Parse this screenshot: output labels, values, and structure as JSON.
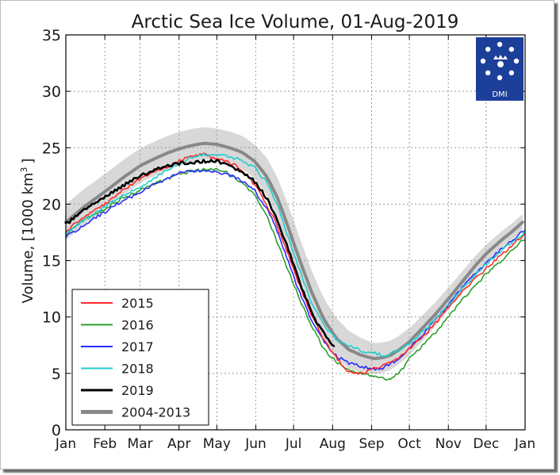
{
  "chart_data": {
    "type": "line",
    "title": "Arctic Sea Ice Volume, 01-Aug-2019",
    "ylabel": "Volume, [1000 km",
    "ylabel_sup": "3",
    "ylabel_end": "]",
    "xlabel": "",
    "ylim": [
      0,
      35
    ],
    "yticks": [
      0,
      5,
      10,
      15,
      20,
      25,
      30,
      35
    ],
    "xlim": [
      0,
      365
    ],
    "xtick_days": [
      0,
      31,
      59,
      90,
      120,
      151,
      181,
      212,
      243,
      273,
      304,
      334,
      365
    ],
    "xtick_labels": [
      "Jan",
      "Feb",
      "Mar",
      "Apr",
      "May",
      "Jun",
      "Jul",
      "Aug",
      "Sep",
      "Oct",
      "Nov",
      "Dec",
      "Jan"
    ],
    "grid": true,
    "legend_position": "bottom-left",
    "logo_text": "DMI",
    "series": [
      {
        "name": "2015",
        "color": "#ff2a2a",
        "points": [
          [
            0,
            17.6
          ],
          [
            15,
            18.9
          ],
          [
            31,
            20.0
          ],
          [
            45,
            21.2
          ],
          [
            59,
            22.3
          ],
          [
            70,
            22.9
          ],
          [
            80,
            23.3
          ],
          [
            90,
            23.8
          ],
          [
            100,
            24.3
          ],
          [
            110,
            24.4
          ],
          [
            115,
            24.2
          ],
          [
            125,
            23.9
          ],
          [
            135,
            23.4
          ],
          [
            145,
            22.5
          ],
          [
            155,
            20.9
          ],
          [
            165,
            18.8
          ],
          [
            175,
            16.0
          ],
          [
            185,
            13.0
          ],
          [
            195,
            10.2
          ],
          [
            205,
            8.0
          ],
          [
            215,
            6.4
          ],
          [
            222,
            5.4
          ],
          [
            228,
            5.0
          ],
          [
            235,
            5.0
          ],
          [
            242,
            5.3
          ],
          [
            250,
            5.6
          ],
          [
            258,
            5.9
          ],
          [
            265,
            6.4
          ],
          [
            273,
            7.2
          ],
          [
            285,
            8.4
          ],
          [
            295,
            9.6
          ],
          [
            304,
            10.8
          ],
          [
            315,
            12.2
          ],
          [
            325,
            13.3
          ],
          [
            334,
            14.3
          ],
          [
            345,
            15.4
          ],
          [
            355,
            16.4
          ],
          [
            365,
            17.4
          ]
        ]
      },
      {
        "name": "2016",
        "color": "#2ca02c",
        "points": [
          [
            0,
            17.4
          ],
          [
            15,
            18.6
          ],
          [
            31,
            19.6
          ],
          [
            45,
            20.5
          ],
          [
            59,
            21.2
          ],
          [
            70,
            21.8
          ],
          [
            80,
            22.2
          ],
          [
            90,
            22.7
          ],
          [
            100,
            22.9
          ],
          [
            110,
            23.1
          ],
          [
            120,
            23.1
          ],
          [
            130,
            22.7
          ],
          [
            140,
            21.9
          ],
          [
            150,
            20.8
          ],
          [
            160,
            18.9
          ],
          [
            168,
            16.6
          ],
          [
            175,
            14.6
          ],
          [
            185,
            11.8
          ],
          [
            195,
            9.3
          ],
          [
            205,
            7.2
          ],
          [
            215,
            6.0
          ],
          [
            225,
            5.3
          ],
          [
            235,
            5.0
          ],
          [
            243,
            4.8
          ],
          [
            250,
            4.6
          ],
          [
            255,
            4.5
          ],
          [
            260,
            4.7
          ],
          [
            267,
            5.3
          ],
          [
            273,
            6.3
          ],
          [
            285,
            7.6
          ],
          [
            295,
            8.8
          ],
          [
            304,
            10.0
          ],
          [
            315,
            11.5
          ],
          [
            325,
            12.7
          ],
          [
            334,
            13.8
          ],
          [
            345,
            14.9
          ],
          [
            355,
            15.9
          ],
          [
            365,
            17.0
          ]
        ]
      },
      {
        "name": "2017",
        "color": "#2a2aff",
        "points": [
          [
            0,
            17.1
          ],
          [
            15,
            18.2
          ],
          [
            31,
            19.3
          ],
          [
            45,
            20.3
          ],
          [
            59,
            21.0
          ],
          [
            70,
            21.7
          ],
          [
            80,
            22.3
          ],
          [
            90,
            22.7
          ],
          [
            100,
            22.9
          ],
          [
            110,
            23.0
          ],
          [
            120,
            22.9
          ],
          [
            130,
            22.6
          ],
          [
            140,
            22.0
          ],
          [
            150,
            21.2
          ],
          [
            160,
            19.6
          ],
          [
            168,
            17.6
          ],
          [
            175,
            15.4
          ],
          [
            185,
            12.4
          ],
          [
            195,
            9.8
          ],
          [
            205,
            7.8
          ],
          [
            215,
            6.5
          ],
          [
            225,
            5.9
          ],
          [
            235,
            5.6
          ],
          [
            245,
            5.4
          ],
          [
            252,
            5.5
          ],
          [
            258,
            5.8
          ],
          [
            265,
            6.4
          ],
          [
            273,
            7.2
          ],
          [
            285,
            8.6
          ],
          [
            295,
            9.9
          ],
          [
            304,
            11.0
          ],
          [
            315,
            12.6
          ],
          [
            325,
            13.8
          ],
          [
            334,
            14.8
          ],
          [
            345,
            15.9
          ],
          [
            355,
            16.8
          ],
          [
            365,
            17.8
          ]
        ]
      },
      {
        "name": "2018",
        "color": "#22cccc",
        "points": [
          [
            0,
            17.4
          ],
          [
            15,
            18.6
          ],
          [
            31,
            19.8
          ],
          [
            45,
            20.7
          ],
          [
            59,
            21.5
          ],
          [
            70,
            22.3
          ],
          [
            80,
            23.0
          ],
          [
            90,
            23.6
          ],
          [
            100,
            24.1
          ],
          [
            110,
            24.4
          ],
          [
            120,
            24.4
          ],
          [
            130,
            24.2
          ],
          [
            140,
            23.9
          ],
          [
            150,
            23.2
          ],
          [
            160,
            21.9
          ],
          [
            168,
            20.0
          ],
          [
            175,
            17.6
          ],
          [
            185,
            14.4
          ],
          [
            195,
            11.4
          ],
          [
            205,
            9.2
          ],
          [
            215,
            8.0
          ],
          [
            225,
            7.4
          ],
          [
            235,
            7.0
          ],
          [
            245,
            6.8
          ],
          [
            252,
            6.6
          ],
          [
            258,
            6.7
          ],
          [
            265,
            7.1
          ],
          [
            273,
            7.7
          ],
          [
            285,
            8.8
          ],
          [
            295,
            9.9
          ],
          [
            304,
            11.0
          ],
          [
            315,
            12.5
          ],
          [
            325,
            13.7
          ],
          [
            334,
            14.7
          ],
          [
            345,
            15.8
          ],
          [
            355,
            16.7
          ],
          [
            365,
            17.5
          ]
        ]
      },
      {
        "name": "2019",
        "color": "#000000",
        "points": [
          [
            0,
            18.2
          ],
          [
            15,
            19.5
          ],
          [
            31,
            20.6
          ],
          [
            45,
            21.6
          ],
          [
            59,
            22.5
          ],
          [
            70,
            23.0
          ],
          [
            80,
            23.4
          ],
          [
            90,
            23.6
          ],
          [
            100,
            23.7
          ],
          [
            110,
            23.8
          ],
          [
            120,
            23.8
          ],
          [
            130,
            23.4
          ],
          [
            140,
            22.9
          ],
          [
            150,
            22.0
          ],
          [
            160,
            20.5
          ],
          [
            170,
            18.0
          ],
          [
            180,
            15.0
          ],
          [
            190,
            11.8
          ],
          [
            200,
            9.4
          ],
          [
            210,
            7.7
          ],
          [
            213,
            7.4
          ]
        ]
      },
      {
        "name": "2004-2013",
        "color": "#888888",
        "band_color": "#d8d8d8",
        "points": [
          [
            0,
            18.4
          ],
          [
            15,
            19.8
          ],
          [
            31,
            21.1
          ],
          [
            45,
            22.3
          ],
          [
            59,
            23.4
          ],
          [
            70,
            24.0
          ],
          [
            80,
            24.5
          ],
          [
            90,
            24.9
          ],
          [
            100,
            25.2
          ],
          [
            110,
            25.4
          ],
          [
            120,
            25.3
          ],
          [
            130,
            25.0
          ],
          [
            140,
            24.6
          ],
          [
            150,
            23.8
          ],
          [
            160,
            22.4
          ],
          [
            168,
            20.6
          ],
          [
            175,
            18.5
          ],
          [
            185,
            15.3
          ],
          [
            195,
            12.3
          ],
          [
            205,
            9.8
          ],
          [
            215,
            8.1
          ],
          [
            225,
            7.1
          ],
          [
            235,
            6.6
          ],
          [
            245,
            6.3
          ],
          [
            252,
            6.4
          ],
          [
            258,
            6.6
          ],
          [
            265,
            7.1
          ],
          [
            273,
            7.8
          ],
          [
            285,
            9.2
          ],
          [
            295,
            10.4
          ],
          [
            304,
            11.6
          ],
          [
            315,
            13.1
          ],
          [
            325,
            14.5
          ],
          [
            334,
            15.6
          ],
          [
            345,
            16.7
          ],
          [
            355,
            17.6
          ],
          [
            365,
            18.6
          ]
        ],
        "band_halfwidth": [
          [
            0,
            1.6
          ],
          [
            90,
            1.5
          ],
          [
            120,
            1.4
          ],
          [
            150,
            1.5
          ],
          [
            180,
            2.0
          ],
          [
            215,
            1.8
          ],
          [
            243,
            1.4
          ],
          [
            273,
            1.2
          ],
          [
            304,
            1.0
          ],
          [
            334,
            0.8
          ],
          [
            365,
            0.7
          ]
        ]
      }
    ]
  }
}
